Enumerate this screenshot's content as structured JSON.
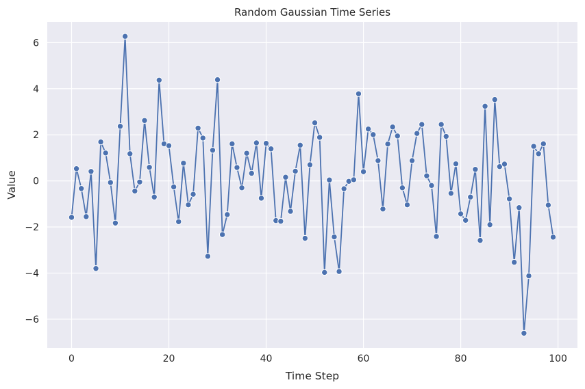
{
  "chart_data": {
    "type": "line",
    "title": "Random Gaussian Time Series",
    "xlabel": "Time Step",
    "ylabel": "Value",
    "xlim": [
      -5,
      104
    ],
    "ylim": [
      -7.25,
      6.9
    ],
    "xticks": [
      0,
      20,
      40,
      60,
      80,
      100
    ],
    "yticks": [
      -6,
      -4,
      -2,
      0,
      2,
      4,
      6
    ],
    "grid": true,
    "colors": {
      "background": "#eaeaf2",
      "series": "#4c72b0",
      "grid": "#ffffff"
    },
    "series": [
      {
        "x": [
          0,
          1,
          2,
          3,
          4,
          5,
          6,
          7,
          8,
          9,
          10,
          11,
          12,
          13,
          14,
          15,
          16,
          17,
          18,
          19,
          20,
          21,
          22,
          23,
          24,
          25,
          26,
          27,
          28,
          29,
          30,
          31,
          32,
          33,
          34,
          35,
          36,
          37,
          38,
          39,
          40,
          41,
          42,
          43,
          44,
          45,
          46,
          47,
          48,
          49,
          50,
          51,
          52,
          53,
          54,
          55,
          56,
          57,
          58,
          59,
          60,
          61,
          62,
          63,
          64,
          65,
          66,
          67,
          68,
          69,
          70,
          71,
          72,
          73,
          74,
          75,
          76,
          77,
          78,
          79,
          80,
          81,
          82,
          83,
          84,
          85,
          86,
          87,
          88,
          89,
          90,
          91,
          92,
          93,
          94,
          95,
          96,
          97,
          98,
          99
        ],
        "values": [
          -1.58,
          0.53,
          -0.33,
          -1.55,
          0.41,
          -3.8,
          1.69,
          1.21,
          -0.07,
          -1.83,
          2.37,
          6.27,
          1.18,
          -0.44,
          -0.05,
          2.62,
          0.59,
          -0.7,
          4.37,
          1.61,
          1.53,
          -0.26,
          -1.77,
          0.77,
          -1.04,
          -0.58,
          2.29,
          1.86,
          -3.27,
          1.33,
          4.39,
          -2.33,
          -1.46,
          1.61,
          0.58,
          -0.3,
          1.2,
          0.33,
          1.65,
          -0.75,
          1.63,
          1.39,
          -1.72,
          -1.75,
          0.16,
          -1.32,
          0.42,
          1.55,
          -2.49,
          0.7,
          2.52,
          1.89,
          -3.97,
          0.04,
          -2.43,
          -3.93,
          -0.34,
          -0.02,
          0.05,
          3.78,
          0.4,
          2.25,
          2.01,
          0.88,
          -1.22,
          1.6,
          2.34,
          1.95,
          -0.3,
          -1.04,
          0.88,
          2.06,
          2.45,
          0.22,
          -0.2,
          -2.41,
          2.45,
          1.93,
          -0.54,
          0.74,
          -1.43,
          -1.71,
          -0.7,
          0.5,
          -2.58,
          3.24,
          -1.9,
          3.53,
          0.62,
          0.73,
          -0.78,
          -3.53,
          -1.16,
          -6.61,
          -4.12,
          1.5,
          1.18,
          1.61,
          -1.05,
          -2.44
        ]
      }
    ]
  }
}
